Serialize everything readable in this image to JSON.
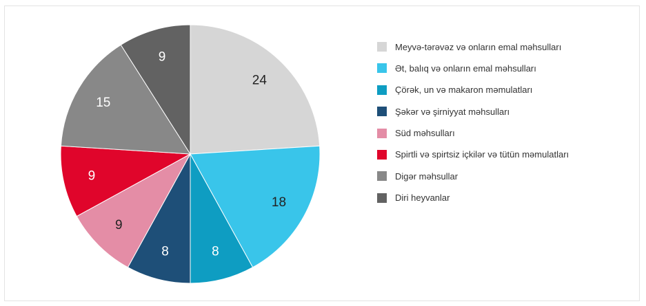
{
  "chart_data": {
    "type": "pie",
    "title": "",
    "slices": [
      {
        "label": "Meyvə-tərəvəz və onların emal məhsulları",
        "value": 24,
        "color": "#d6d6d6",
        "label_color": "#222222"
      },
      {
        "label": "Ət, balıq və onların emal məhsulları",
        "value": 18,
        "color": "#39c5ea",
        "label_color": "#222222"
      },
      {
        "label": "Çörək, un və makaron məmulatları",
        "value": 8,
        "color": "#0e9dc2",
        "label_color": "#ffffff"
      },
      {
        "label": "Şəkər və şirniyyat məhsulları",
        "value": 8,
        "color": "#1e4f78",
        "label_color": "#ffffff"
      },
      {
        "label": "Süd məhsulları",
        "value": 9,
        "color": "#e48da6",
        "label_color": "#222222"
      },
      {
        "label": "Spirtli və spirtsiz içkilər və tütün məmulatları",
        "value": 9,
        "color": "#e0052b",
        "label_color": "#ffffff"
      },
      {
        "label": "Digər məhsullar",
        "value": 15,
        "color": "#888888",
        "label_color": "#ffffff"
      },
      {
        "label": "Diri heyvanlar",
        "value": 9,
        "color": "#626262",
        "label_color": "#ffffff"
      }
    ],
    "legend_position": "right",
    "start_angle": "top",
    "direction": "clockwise"
  }
}
